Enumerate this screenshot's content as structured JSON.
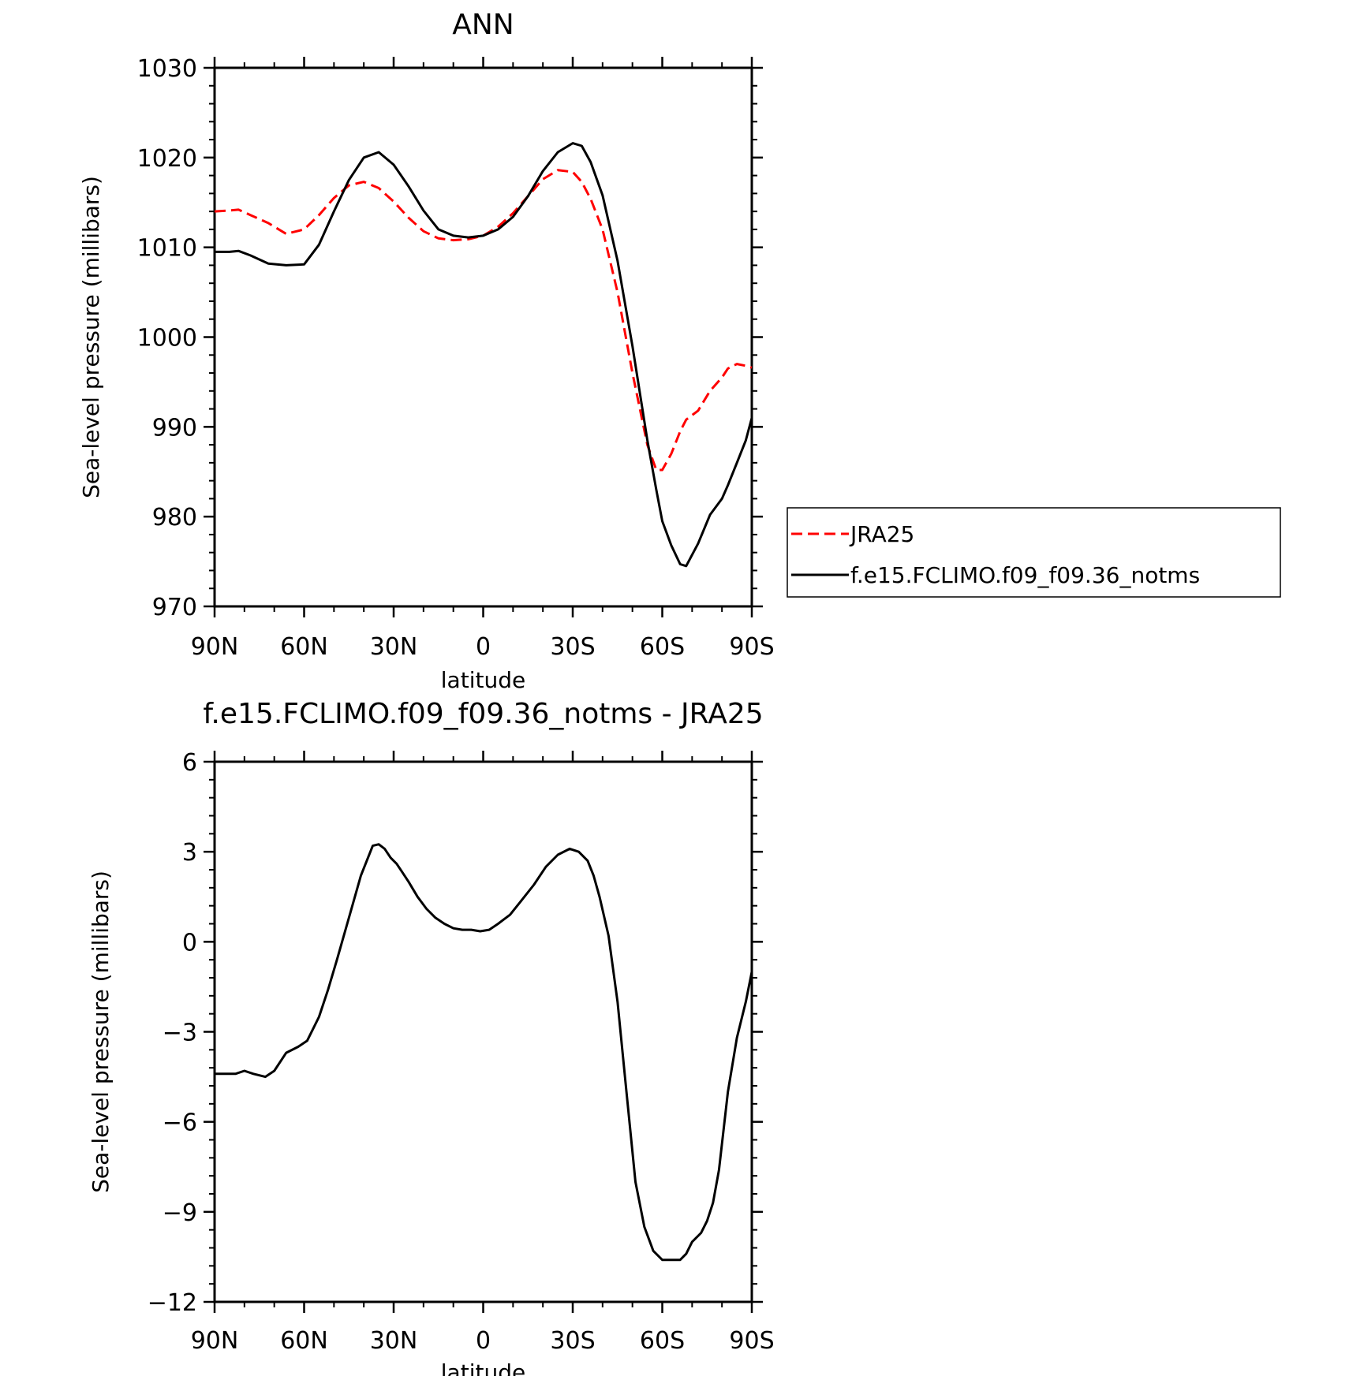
{
  "chart_data": [
    {
      "type": "line",
      "title": "ANN",
      "xlabel": "latitude",
      "ylabel": "Sea-level pressure (millibars)",
      "xlim": [
        90,
        -90
      ],
      "ylim": [
        970,
        1030
      ],
      "x_ticks": [
        90,
        60,
        30,
        0,
        -30,
        -60,
        -90
      ],
      "x_tick_labels": [
        "90N",
        "60N",
        "30N",
        "0",
        "30S",
        "60S",
        "90S"
      ],
      "y_ticks": [
        970,
        980,
        990,
        1000,
        1010,
        1020,
        1030
      ],
      "y_tick_labels": [
        "970",
        "980",
        "990",
        "1000",
        "1010",
        "1020",
        "1030"
      ],
      "legend_position": "right",
      "series": [
        {
          "name": "JRA25",
          "color": "#ff0000",
          "dash": "dashed",
          "x": [
            90,
            85,
            82,
            78,
            72,
            66,
            60,
            55,
            50,
            45,
            40,
            35,
            30,
            25,
            20,
            15,
            10,
            5,
            0,
            -5,
            -10,
            -15,
            -20,
            -25,
            -30,
            -33,
            -36,
            -40,
            -45,
            -50,
            -55,
            -58,
            -60,
            -63,
            -66,
            -68,
            -72,
            -76,
            -80,
            -82,
            -85,
            -88,
            -90
          ],
          "values": [
            1014.0,
            1014.1,
            1014.2,
            1013.6,
            1012.7,
            1011.5,
            1012.0,
            1013.6,
            1015.5,
            1016.9,
            1017.3,
            1016.6,
            1015.1,
            1013.3,
            1011.8,
            1011.0,
            1010.8,
            1010.9,
            1011.3,
            1012.3,
            1013.8,
            1015.7,
            1017.6,
            1018.6,
            1018.4,
            1017.3,
            1015.4,
            1012.0,
            1005.0,
            996.0,
            988.0,
            985.2,
            985.2,
            987.0,
            989.5,
            990.8,
            991.8,
            994.0,
            995.5,
            996.5,
            997.0,
            996.8,
            996.6
          ]
        },
        {
          "name": "f.e15.FCLIMO.f09_f09.36_notms",
          "color": "#000000",
          "dash": "solid",
          "x": [
            90,
            85,
            82,
            78,
            72,
            66,
            60,
            55,
            50,
            45,
            40,
            35,
            30,
            25,
            20,
            15,
            10,
            5,
            0,
            -5,
            -10,
            -15,
            -20,
            -25,
            -30,
            -33,
            -36,
            -40,
            -45,
            -50,
            -55,
            -58,
            -60,
            -63,
            -66,
            -68,
            -72,
            -76,
            -80,
            -82,
            -85,
            -88,
            -90
          ],
          "values": [
            1009.5,
            1009.5,
            1009.6,
            1009.1,
            1008.2,
            1008.0,
            1008.1,
            1010.3,
            1014.0,
            1017.5,
            1020.0,
            1020.6,
            1019.2,
            1016.8,
            1014.1,
            1012.0,
            1011.3,
            1011.1,
            1011.3,
            1012.0,
            1013.4,
            1015.7,
            1018.5,
            1020.6,
            1021.6,
            1021.3,
            1019.5,
            1015.8,
            1008.5,
            999.0,
            988.5,
            983.0,
            979.5,
            976.8,
            974.7,
            974.5,
            977.0,
            980.2,
            982.0,
            983.5,
            986.0,
            988.5,
            991.0
          ]
        }
      ]
    },
    {
      "type": "line",
      "title": "f.e15.FCLIMO.f09_f09.36_notms - JRA25",
      "xlabel": "latitude",
      "ylabel": "Sea-level pressure (millibars)",
      "xlim": [
        90,
        -90
      ],
      "ylim": [
        -12,
        6
      ],
      "x_ticks": [
        90,
        60,
        30,
        0,
        -30,
        -60,
        -90
      ],
      "x_tick_labels": [
        "90N",
        "60N",
        "30N",
        "0",
        "30S",
        "60S",
        "90S"
      ],
      "y_ticks": [
        -12,
        -9,
        -6,
        -3,
        0,
        3,
        6
      ],
      "y_tick_labels": [
        "−12",
        "−9",
        "−6",
        "−3",
        "0",
        "3",
        "6"
      ],
      "series": [
        {
          "color": "#000000",
          "dash": "solid",
          "x": [
            90,
            86,
            83,
            80,
            77,
            73,
            70,
            66,
            62,
            59,
            57,
            55,
            52,
            49,
            45,
            41,
            37,
            35,
            33,
            31,
            29,
            27,
            25,
            22,
            19,
            16,
            13,
            10,
            7,
            4,
            1,
            -2,
            -5,
            -9,
            -13,
            -17,
            -21,
            -25,
            -29,
            -32,
            -35,
            -37,
            -39,
            -42,
            -45,
            -48,
            -51,
            -54,
            -57,
            -60,
            -63,
            -66,
            -68,
            -70,
            -73,
            -75,
            -77,
            -79,
            -82,
            -85,
            -88,
            -90
          ],
          "values": [
            -4.4,
            -4.4,
            -4.4,
            -4.3,
            -4.4,
            -4.5,
            -4.3,
            -3.7,
            -3.5,
            -3.3,
            -2.9,
            -2.5,
            -1.6,
            -0.6,
            0.8,
            2.2,
            3.2,
            3.25,
            3.1,
            2.8,
            2.6,
            2.3,
            2.0,
            1.5,
            1.1,
            0.8,
            0.6,
            0.45,
            0.4,
            0.4,
            0.35,
            0.4,
            0.6,
            0.9,
            1.4,
            1.9,
            2.5,
            2.9,
            3.1,
            3.0,
            2.7,
            2.2,
            1.5,
            0.2,
            -2.0,
            -5.0,
            -8.0,
            -9.5,
            -10.3,
            -10.6,
            -10.6,
            -10.6,
            -10.4,
            -10.0,
            -9.7,
            -9.3,
            -8.7,
            -7.6,
            -5.0,
            -3.2,
            -2.0,
            -1.0
          ]
        }
      ]
    }
  ]
}
